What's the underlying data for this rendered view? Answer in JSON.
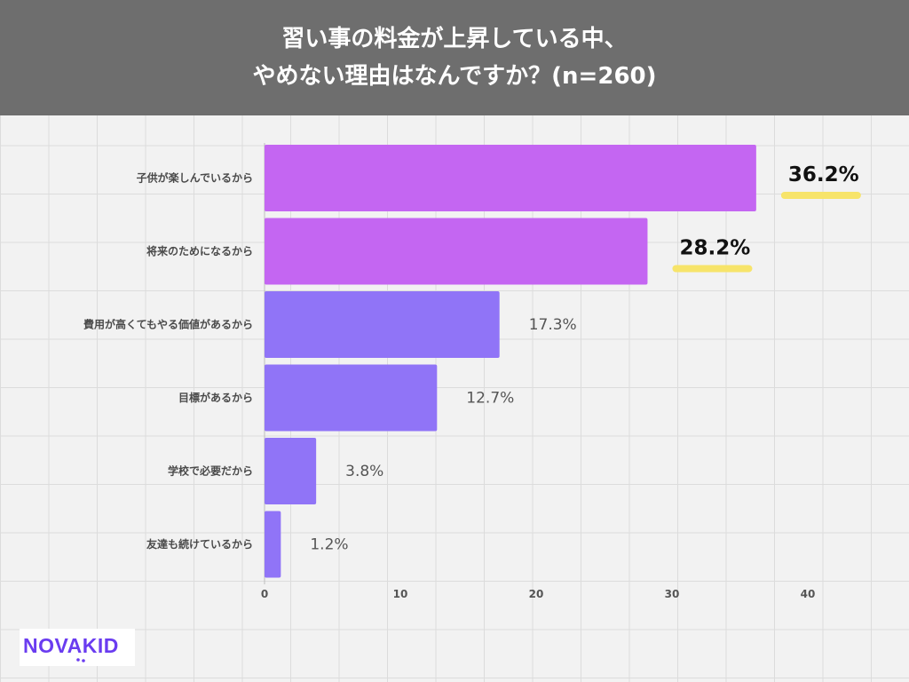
{
  "title": {
    "line1": "習い事の料金が上昇している中、",
    "line2": "やめない理由はなんですか？(n=260)"
  },
  "logo": {
    "text": "NOVAKID",
    "name": "novakid-logo"
  },
  "colors": {
    "highlight_bar": "#c466f2",
    "bar": "#9074f7",
    "marker": "#f7e46a",
    "header_bg": "#6e6e6e"
  },
  "chart_data": {
    "type": "bar",
    "orientation": "horizontal",
    "categories": [
      "子供が楽しんでいるから",
      "将来のためになるから",
      "費用が高くてもやる価値があるから",
      "目標があるから",
      "学校で必要だから",
      "友達も続けているから"
    ],
    "values": [
      36.2,
      28.2,
      17.3,
      12.7,
      3.8,
      1.2
    ],
    "value_labels": [
      "36.2%",
      "28.2%",
      "17.3%",
      "12.7%",
      "3.8%",
      "1.2%"
    ],
    "highlighted": [
      true,
      true,
      false,
      false,
      false,
      false
    ],
    "xlim": [
      0,
      45
    ],
    "xticks": [
      0,
      10,
      20,
      30,
      40
    ],
    "xlabel": "",
    "ylabel": "",
    "grid": true
  }
}
